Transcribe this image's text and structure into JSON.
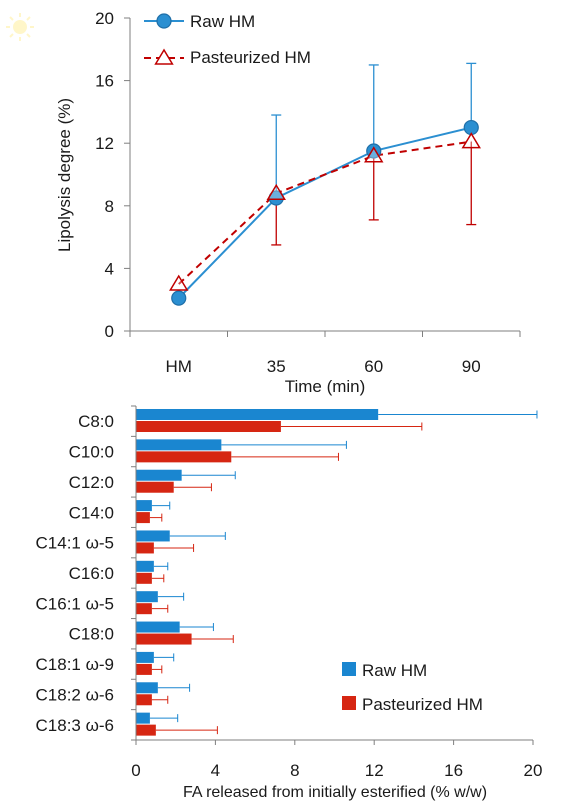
{
  "chart_data": [
    {
      "type": "line",
      "xlabel": "Time (min)",
      "ylabel": "Lipolysis degree (%)",
      "categories": [
        "HM",
        "35",
        "60",
        "90"
      ],
      "ylim": [
        0,
        20
      ],
      "yticks": [
        0,
        4,
        8,
        12,
        16,
        20
      ],
      "legend_position": "top-left",
      "grid": false,
      "series": [
        {
          "name": "Raw HM",
          "values": [
            2.1,
            8.5,
            11.5,
            13.0
          ],
          "error_plus": [
            0,
            5.3,
            5.5,
            4.1
          ],
          "error_minus": [
            0,
            0,
            0,
            0
          ],
          "color": "#2b8fd1",
          "edge_color": "#1f6fa8",
          "marker": "circle",
          "line": "solid"
        },
        {
          "name": "Pasteurized HM",
          "values": [
            3.0,
            8.8,
            11.2,
            12.1
          ],
          "error_plus": [
            0,
            0,
            0,
            0
          ],
          "error_minus": [
            0,
            3.3,
            4.1,
            5.3
          ],
          "color": "#c00000",
          "marker": "triangle-open",
          "line": "dashed"
        }
      ]
    },
    {
      "type": "bar",
      "orientation": "horizontal",
      "xlabel": "FA released from initially esterified (% w/w)",
      "categories": [
        "C8:0",
        "C10:0",
        "C12:0",
        "C14:0",
        "C14:1 ω-5",
        "C16:0",
        "C16:1 ω-5",
        "C18:0",
        "C18:1 ω-9",
        "C18:2 ω-6",
        "C18:3 ω-6"
      ],
      "xlim": [
        0,
        20
      ],
      "xticks": [
        0,
        4,
        8,
        12,
        16,
        20
      ],
      "legend_position": "bottom-right",
      "grid": false,
      "series": [
        {
          "name": "Raw HM",
          "color": "#1a86d0",
          "values": [
            12.2,
            4.3,
            2.3,
            0.8,
            1.7,
            0.9,
            1.1,
            2.2,
            0.9,
            1.1,
            0.7
          ],
          "error_plus": [
            8.0,
            6.3,
            2.7,
            0.9,
            2.8,
            0.7,
            1.3,
            1.7,
            1.0,
            1.6,
            1.4
          ]
        },
        {
          "name": "Pasteurized HM",
          "color": "#d62612",
          "values": [
            7.3,
            4.8,
            1.9,
            0.7,
            0.9,
            0.8,
            0.8,
            2.8,
            0.8,
            0.8,
            1.0
          ],
          "error_plus": [
            7.1,
            5.4,
            1.9,
            0.6,
            2.0,
            0.6,
            0.8,
            2.1,
            0.5,
            0.8,
            3.1
          ]
        }
      ]
    }
  ]
}
